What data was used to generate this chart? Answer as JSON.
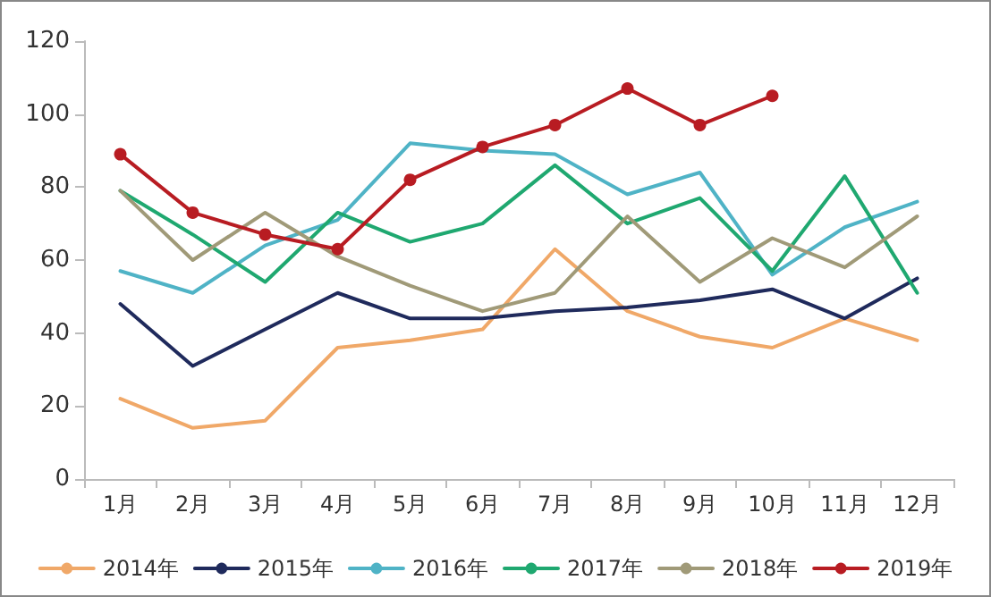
{
  "chart_data": {
    "type": "line",
    "categories": [
      "1月",
      "2月",
      "3月",
      "4月",
      "5月",
      "6月",
      "7月",
      "8月",
      "9月",
      "10月",
      "11月",
      "12月"
    ],
    "ylim": [
      0,
      120
    ],
    "yticks": [
      0,
      20,
      40,
      60,
      80,
      100,
      120
    ],
    "grid": false,
    "legend": "bottom",
    "marker": "none",
    "series": [
      {
        "name": "2014年",
        "color": "#f0a868",
        "values": [
          22,
          14,
          16,
          36,
          38,
          41,
          63,
          46,
          39,
          36,
          44,
          38
        ]
      },
      {
        "name": "2015年",
        "color": "#1f2a5c",
        "values": [
          48,
          31,
          41,
          51,
          44,
          44,
          46,
          47,
          49,
          52,
          44,
          55
        ]
      },
      {
        "name": "2016年",
        "color": "#4fb3c6",
        "values": [
          57,
          51,
          64,
          71,
          92,
          90,
          89,
          78,
          84,
          56,
          69,
          76
        ]
      },
      {
        "name": "2017年",
        "color": "#1fa870",
        "values": [
          79,
          67,
          54,
          73,
          65,
          70,
          86,
          70,
          77,
          57,
          83,
          51
        ]
      },
      {
        "name": "2018年",
        "color": "#a09a78",
        "values": [
          79,
          60,
          73,
          61,
          53,
          46,
          51,
          72,
          54,
          66,
          58,
          72
        ]
      },
      {
        "name": "2019年",
        "color": "#b81c22",
        "marker": "circle",
        "values": [
          89,
          73,
          67,
          63,
          82,
          91,
          97,
          107,
          97,
          105,
          null,
          null
        ]
      }
    ]
  }
}
